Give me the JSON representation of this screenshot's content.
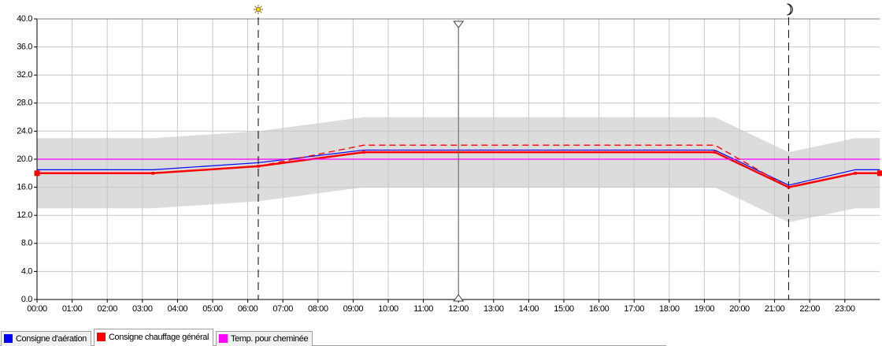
{
  "chart_data": {
    "type": "line",
    "xlim": [
      0,
      24
    ],
    "ylim": [
      0,
      40
    ],
    "grid": true,
    "xticks": [
      {
        "value": 0,
        "label": "00:00"
      },
      {
        "value": 1,
        "label": "01:00"
      },
      {
        "value": 2,
        "label": "02:00"
      },
      {
        "value": 3,
        "label": "03:00"
      },
      {
        "value": 4,
        "label": "04:00"
      },
      {
        "value": 5,
        "label": "05:00"
      },
      {
        "value": 6,
        "label": "06:00"
      },
      {
        "value": 7,
        "label": "07:00"
      },
      {
        "value": 8,
        "label": "08:00"
      },
      {
        "value": 9,
        "label": "09:00"
      },
      {
        "value": 10,
        "label": "10:00"
      },
      {
        "value": 11,
        "label": "11:00"
      },
      {
        "value": 12,
        "label": "12:00"
      },
      {
        "value": 13,
        "label": "13:00"
      },
      {
        "value": 14,
        "label": "14:00"
      },
      {
        "value": 15,
        "label": "15:00"
      },
      {
        "value": 16,
        "label": "16:00"
      },
      {
        "value": 17,
        "label": "17:00"
      },
      {
        "value": 18,
        "label": "18:00"
      },
      {
        "value": 19,
        "label": "19:00"
      },
      {
        "value": 20,
        "label": "20:00"
      },
      {
        "value": 21,
        "label": "21:00"
      },
      {
        "value": 22,
        "label": "22:00"
      },
      {
        "value": 23,
        "label": "23:00"
      }
    ],
    "yticks": [
      {
        "value": 0,
        "label": "0.0"
      },
      {
        "value": 4,
        "label": "4.0"
      },
      {
        "value": 8,
        "label": "8.0"
      },
      {
        "value": 12,
        "label": "12.0"
      },
      {
        "value": 16,
        "label": "16.0"
      },
      {
        "value": 20,
        "label": "20.0"
      },
      {
        "value": 24,
        "label": "24.0"
      },
      {
        "value": 28,
        "label": "28.0"
      },
      {
        "value": 32,
        "label": "32.0"
      },
      {
        "value": 36,
        "label": "36.0"
      },
      {
        "value": 40,
        "label": "40.0"
      }
    ],
    "band": {
      "color": "#dcdcdc",
      "x": [
        0,
        3.3,
        6.3,
        9.3,
        19.3,
        21.4,
        23.3,
        24
      ],
      "lower": [
        13,
        13,
        14,
        16,
        16,
        11,
        13,
        13
      ],
      "upper": [
        23,
        23,
        24,
        26,
        26,
        21,
        23,
        23
      ]
    },
    "vlines": [
      {
        "x": 6.3,
        "kind": "sunrise"
      },
      {
        "x": 12,
        "kind": "cursor"
      },
      {
        "x": 21.4,
        "kind": "sunset"
      }
    ],
    "series": [
      {
        "name": "Consigne d'aération",
        "color": "#0000ff",
        "x": [
          0,
          3.3,
          6.3,
          9.3,
          19.3,
          21.4,
          23.3,
          24
        ],
        "values": [
          18.5,
          18.5,
          19.5,
          21.3,
          21.3,
          16.3,
          18.5,
          18.5
        ]
      },
      {
        "name": "Consigne chauffage général",
        "color": "#ff0000",
        "x": [
          0,
          3.3,
          6.3,
          9.3,
          19.3,
          21.4,
          23.3,
          24
        ],
        "values": [
          18,
          18,
          19,
          21,
          21,
          16,
          18,
          18
        ]
      },
      {
        "name": "Temp. pour cheminée",
        "color": "#ff00ff",
        "x": [
          0,
          24
        ],
        "values": [
          20,
          20
        ]
      },
      {
        "color": "#ff0000",
        "dashed": true,
        "x": [
          6.3,
          9.3,
          19.3,
          21.4
        ],
        "values": [
          19,
          22,
          22,
          16
        ]
      }
    ],
    "selected_series": 1
  }
}
